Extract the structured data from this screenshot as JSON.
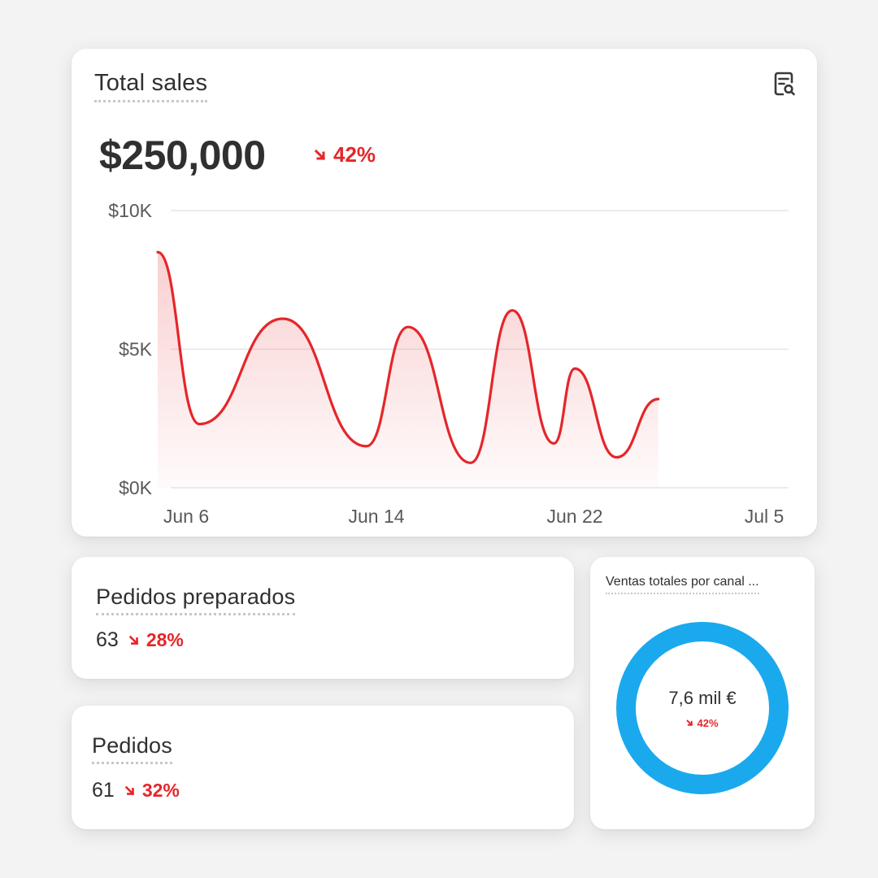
{
  "sales_card": {
    "title": "Total sales",
    "total": "$250,000",
    "delta": "42%",
    "delta_direction": "down",
    "filter_icon": "report-search-icon"
  },
  "chart_data": {
    "type": "area",
    "y_tick_labels": [
      "$10K",
      "$5K",
      "$0K"
    ],
    "x_tick_labels": [
      "Jun 6",
      "Jun 14",
      "Jun 22",
      "Jul 5"
    ],
    "ylim": [
      0,
      10000
    ],
    "grid": true,
    "series": [
      {
        "color": "#e5262a",
        "points": [
          {
            "x": "Jun 6",
            "y": 8500
          },
          {
            "x": "Jun 8",
            "y": 2300
          },
          {
            "x": "Jun 12",
            "y": 6100
          },
          {
            "x": "Jun 16",
            "y": 1500
          },
          {
            "x": "Jun 18",
            "y": 5800
          },
          {
            "x": "Jun 21",
            "y": 900
          },
          {
            "x": "Jun 23",
            "y": 6400
          },
          {
            "x": "Jun 25",
            "y": 1600
          },
          {
            "x": "Jun 26",
            "y": 4300
          },
          {
            "x": "Jun 28",
            "y": 1100
          },
          {
            "x": "Jun 30",
            "y": 3200
          }
        ]
      }
    ]
  },
  "prepared_card": {
    "title": "Pedidos preparados",
    "value": "63",
    "delta": "28%"
  },
  "orders_card": {
    "title": "Pedidos",
    "value": "61",
    "delta": "32%"
  },
  "channel_card": {
    "title": "Ventas totales por canal ...",
    "center_value": "7,6 mil €",
    "delta": "42%",
    "ring_color": "#1ba9ee"
  },
  "colors": {
    "negative": "#e5262a",
    "text": "#303030",
    "axis_text": "#595959"
  }
}
